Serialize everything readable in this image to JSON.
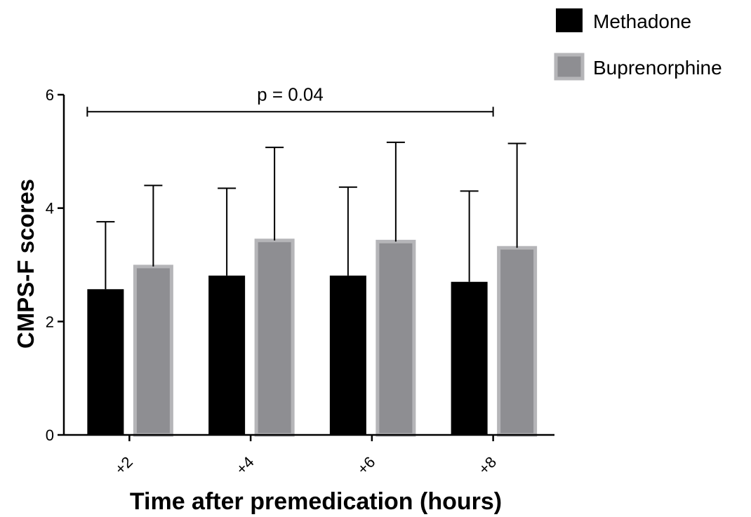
{
  "chart_data": {
    "type": "bar",
    "xlabel": "Time after premedication (hours)",
    "ylabel": "CMPS-F scores",
    "ylim": [
      0,
      6
    ],
    "yticks": [
      0,
      2,
      4,
      6
    ],
    "categories": [
      "+2",
      "+4",
      "+6",
      "+8"
    ],
    "series": [
      {
        "name": "Methadone",
        "color": "#000000",
        "values": [
          2.57,
          2.81,
          2.81,
          2.7
        ],
        "error_upper": [
          3.76,
          4.35,
          4.37,
          4.3
        ]
      },
      {
        "name": "Buprenorphine",
        "color": "#8e8e92",
        "values": [
          2.97,
          3.43,
          3.41,
          3.3
        ],
        "error_upper": [
          4.4,
          5.07,
          5.16,
          5.14
        ]
      }
    ],
    "annotation": {
      "text": "p = 0.04",
      "from_category": "+2",
      "to_category": "+8",
      "y": 5.7
    },
    "legend": {
      "placement": "top-right"
    },
    "grid": false
  }
}
